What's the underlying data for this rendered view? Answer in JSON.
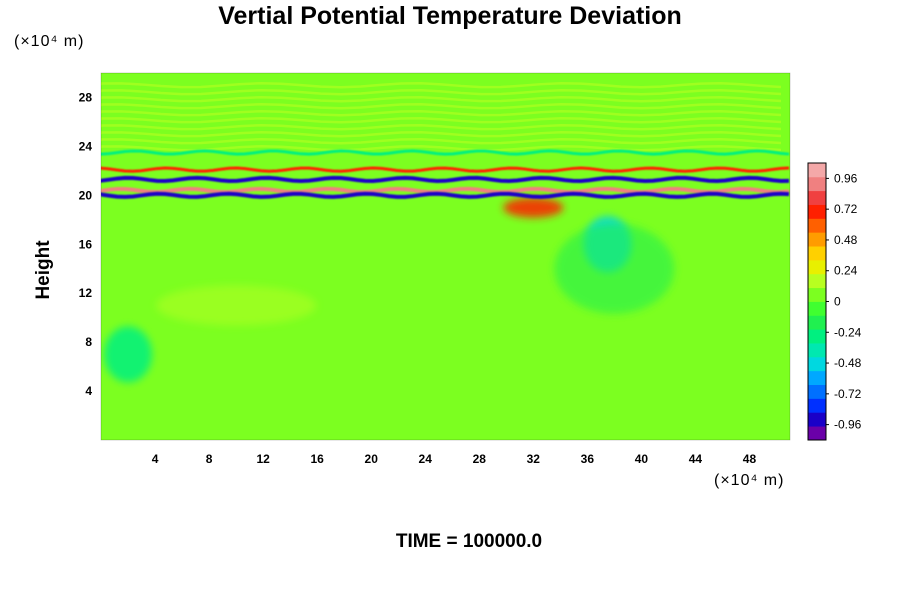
{
  "chart_data": {
    "type": "heatmap",
    "title": "Vertial Potential Temperature Deviation",
    "ylabel": "Height",
    "y_unit": "(×10⁴ m)",
    "x_unit": "(×10⁴ m)",
    "xlim": [
      0,
      51
    ],
    "ylim": [
      0,
      30
    ],
    "x_ticks": [
      "4",
      "8",
      "12",
      "16",
      "20",
      "24",
      "28",
      "32",
      "36",
      "40",
      "44",
      "48"
    ],
    "x_tick_values": [
      4,
      8,
      12,
      16,
      20,
      24,
      28,
      32,
      36,
      40,
      44,
      48
    ],
    "y_ticks": [
      "4",
      "8",
      "12",
      "16",
      "20",
      "24",
      "28"
    ],
    "y_tick_values": [
      4,
      8,
      12,
      16,
      20,
      24,
      28
    ],
    "colorbar": {
      "min": -1.08,
      "max": 1.08,
      "labels": [
        "0.96",
        "0.72",
        "0.48",
        "0.24",
        "0",
        "-0.24",
        "-0.48",
        "-0.72",
        "-0.96"
      ],
      "label_values": [
        0.96,
        0.72,
        0.48,
        0.24,
        0,
        -0.24,
        -0.48,
        -0.72,
        -0.96
      ],
      "colors": [
        "#6a00a8",
        "#1a00c8",
        "#0030ff",
        "#0070ff",
        "#00a8ff",
        "#00d8e0",
        "#00e8b0",
        "#00f080",
        "#20f050",
        "#40ff30",
        "#7cff20",
        "#b8ff20",
        "#e8f000",
        "#ffd000",
        "#ff9c00",
        "#ff6000",
        "#ff2000",
        "#f04040",
        "#f08080",
        "#f4a8a8"
      ]
    },
    "features": [
      {
        "kind": "band",
        "y": 20.4,
        "value": 0.96
      },
      {
        "kind": "band",
        "y": 20.0,
        "value": -0.96
      },
      {
        "kind": "band",
        "y": 21.3,
        "value": -0.96
      },
      {
        "kind": "band",
        "y": 22.1,
        "value": 0.72
      },
      {
        "kind": "band",
        "y": 23.5,
        "value": -0.24
      },
      {
        "kind": "blob",
        "x": 32,
        "y": 19,
        "value": 0.72
      },
      {
        "kind": "blob",
        "x": 37.5,
        "y": 16,
        "value": -0.48
      },
      {
        "kind": "blob",
        "x": 2,
        "y": 7,
        "value": -0.3
      }
    ]
  },
  "time_label": "TIME = 100000.0"
}
